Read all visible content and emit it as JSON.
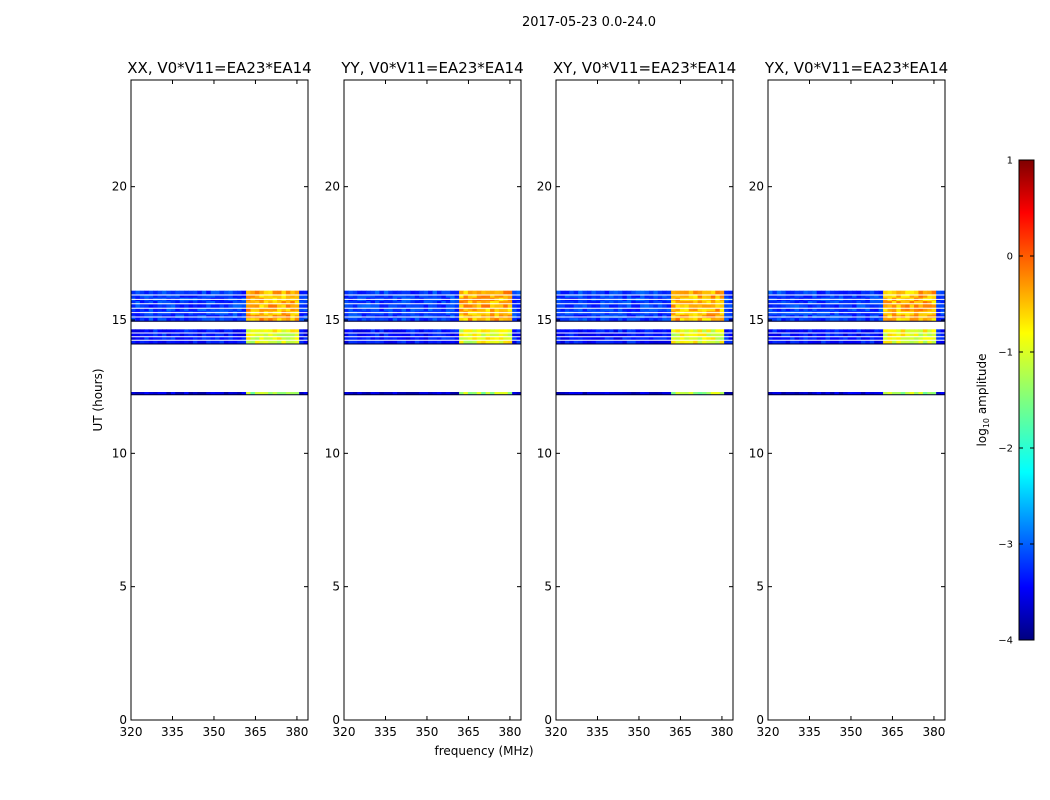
{
  "chart_data": {
    "type": "heatmap",
    "suptitle": "2017-05-23 0.0-24.0",
    "xlabel": "frequency (MHz)",
    "ylabel": "UT (hours)",
    "xlim": [
      320,
      384
    ],
    "ylim": [
      0,
      24
    ],
    "xticks": [
      320,
      335,
      350,
      365,
      380
    ],
    "yticks": [
      0,
      5,
      10,
      15,
      20
    ],
    "panels": [
      {
        "title": "XX, V0*V11=EA23*EA14",
        "bright_band_mhz": [
          361,
          380
        ]
      },
      {
        "title": "YY, V0*V11=EA23*EA14",
        "bright_band_mhz": [
          361,
          381
        ]
      },
      {
        "title": "XY, V0*V11=EA23*EA14",
        "bright_band_mhz": [
          361,
          380
        ]
      },
      {
        "title": "YX, V0*V11=EA23*EA14",
        "bright_band_mhz": [
          361,
          380
        ]
      }
    ],
    "data_ut_ranges": [
      {
        "ut": [
          12.2,
          12.3
        ],
        "level_low": -3.6,
        "level_high": -1.3
      },
      {
        "ut": [
          14.1,
          14.65
        ],
        "level_low": -3.3,
        "level_high": -1.0
      },
      {
        "ut": [
          14.95,
          16.1
        ],
        "level_low": -3.1,
        "level_high": -0.5
      }
    ],
    "colorbar": {
      "label": "log10 amplitude",
      "ticks": [
        1,
        0,
        -1,
        -2,
        -3,
        -4
      ],
      "tick_labels": [
        "1",
        "0",
        "−1",
        "−2",
        "−3",
        "−4"
      ],
      "range": [
        -4,
        1
      ],
      "colormap": "jet"
    }
  }
}
